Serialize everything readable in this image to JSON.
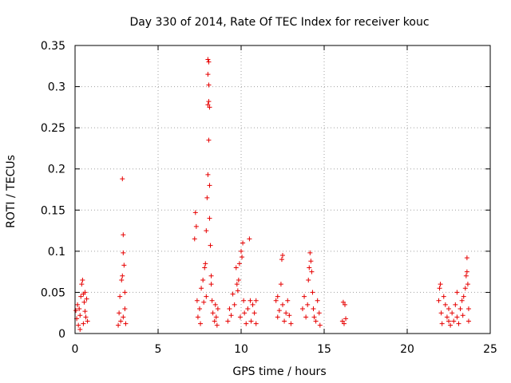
{
  "chart_data": {
    "type": "scatter",
    "title": "Day 330 of 2014, Rate Of TEC Index for receiver kouc",
    "xlabel": "GPS time / hours",
    "ylabel": "ROTI / TECUs",
    "xlim": [
      0,
      25
    ],
    "ylim": [
      0,
      0.35
    ],
    "xticks": [
      "0",
      "5",
      "10",
      "15",
      "20",
      "25"
    ],
    "yticks": [
      "0",
      "0.05",
      "0.1",
      "0.15",
      "0.2",
      "0.25",
      "0.3",
      "0.35"
    ],
    "grid": true,
    "marker": "+",
    "color": "#e60000",
    "series": [
      {
        "name": "ROTI",
        "points": [
          [
            0.05,
            0.028
          ],
          [
            0.1,
            0.018
          ],
          [
            0.15,
            0.035
          ],
          [
            0.2,
            0.01
          ],
          [
            0.25,
            0.03
          ],
          [
            0.3,
            0.022
          ],
          [
            0.35,
            0.045
          ],
          [
            0.4,
            0.06
          ],
          [
            0.45,
            0.065
          ],
          [
            0.5,
            0.012
          ],
          [
            0.55,
            0.038
          ],
          [
            0.6,
            0.05
          ],
          [
            0.65,
            0.02
          ],
          [
            0.7,
            0.042
          ],
          [
            0.75,
            0.015
          ],
          [
            0.3,
            0.005
          ],
          [
            0.5,
            0.048
          ],
          [
            0.6,
            0.027
          ],
          [
            2.6,
            0.01
          ],
          [
            2.65,
            0.025
          ],
          [
            2.7,
            0.045
          ],
          [
            2.75,
            0.015
          ],
          [
            2.8,
            0.065
          ],
          [
            2.85,
            0.07
          ],
          [
            2.85,
            0.188
          ],
          [
            2.9,
            0.12
          ],
          [
            2.9,
            0.098
          ],
          [
            2.95,
            0.083
          ],
          [
            3.0,
            0.05
          ],
          [
            3.0,
            0.03
          ],
          [
            3.05,
            0.012
          ],
          [
            2.9,
            0.02
          ],
          [
            7.2,
            0.115
          ],
          [
            7.25,
            0.147
          ],
          [
            7.3,
            0.13
          ],
          [
            7.35,
            0.04
          ],
          [
            7.4,
            0.02
          ],
          [
            7.5,
            0.03
          ],
          [
            7.55,
            0.012
          ],
          [
            7.6,
            0.055
          ],
          [
            7.7,
            0.065
          ],
          [
            7.75,
            0.038
          ],
          [
            7.8,
            0.08
          ],
          [
            7.85,
            0.085
          ],
          [
            7.9,
            0.125
          ],
          [
            7.95,
            0.165
          ],
          [
            8.0,
            0.333
          ],
          [
            8.0,
            0.315
          ],
          [
            8.0,
            0.278
          ],
          [
            8.0,
            0.193
          ],
          [
            8.05,
            0.33
          ],
          [
            8.05,
            0.302
          ],
          [
            8.05,
            0.282
          ],
          [
            8.05,
            0.235
          ],
          [
            8.1,
            0.275
          ],
          [
            8.1,
            0.18
          ],
          [
            8.1,
            0.14
          ],
          [
            8.15,
            0.107
          ],
          [
            8.2,
            0.07
          ],
          [
            8.25,
            0.04
          ],
          [
            8.3,
            0.025
          ],
          [
            8.4,
            0.015
          ],
          [
            8.45,
            0.035
          ],
          [
            8.5,
            0.02
          ],
          [
            8.55,
            0.01
          ],
          [
            8.6,
            0.03
          ],
          [
            8.2,
            0.06
          ],
          [
            7.9,
            0.045
          ],
          [
            9.2,
            0.015
          ],
          [
            9.3,
            0.03
          ],
          [
            9.4,
            0.022
          ],
          [
            9.5,
            0.048
          ],
          [
            9.6,
            0.035
          ],
          [
            9.7,
            0.08
          ],
          [
            9.75,
            0.06
          ],
          [
            9.8,
            0.052
          ],
          [
            9.85,
            0.065
          ],
          [
            9.9,
            0.085
          ],
          [
            9.95,
            0.02
          ],
          [
            10.0,
            0.1
          ],
          [
            10.05,
            0.093
          ],
          [
            10.1,
            0.11
          ],
          [
            10.15,
            0.04
          ],
          [
            10.2,
            0.025
          ],
          [
            10.3,
            0.012
          ],
          [
            10.4,
            0.03
          ],
          [
            10.5,
            0.115
          ],
          [
            10.55,
            0.04
          ],
          [
            10.6,
            0.015
          ],
          [
            10.7,
            0.035
          ],
          [
            10.8,
            0.025
          ],
          [
            10.9,
            0.04
          ],
          [
            10.9,
            0.012
          ],
          [
            12.1,
            0.04
          ],
          [
            12.2,
            0.02
          ],
          [
            12.3,
            0.028
          ],
          [
            12.4,
            0.06
          ],
          [
            12.45,
            0.09
          ],
          [
            12.5,
            0.095
          ],
          [
            12.5,
            0.035
          ],
          [
            12.6,
            0.015
          ],
          [
            12.7,
            0.025
          ],
          [
            12.8,
            0.04
          ],
          [
            12.9,
            0.022
          ],
          [
            13.0,
            0.012
          ],
          [
            12.2,
            0.045
          ],
          [
            13.7,
            0.03
          ],
          [
            13.8,
            0.045
          ],
          [
            13.9,
            0.02
          ],
          [
            14.0,
            0.035
          ],
          [
            14.05,
            0.065
          ],
          [
            14.1,
            0.08
          ],
          [
            14.15,
            0.098
          ],
          [
            14.2,
            0.088
          ],
          [
            14.25,
            0.075
          ],
          [
            14.3,
            0.05
          ],
          [
            14.35,
            0.03
          ],
          [
            14.4,
            0.02
          ],
          [
            14.5,
            0.015
          ],
          [
            14.6,
            0.04
          ],
          [
            14.7,
            0.025
          ],
          [
            14.75,
            0.01
          ],
          [
            16.1,
            0.015
          ],
          [
            16.15,
            0.038
          ],
          [
            16.2,
            0.012
          ],
          [
            16.25,
            0.035
          ],
          [
            16.3,
            0.018
          ],
          [
            21.9,
            0.04
          ],
          [
            21.95,
            0.055
          ],
          [
            22.0,
            0.06
          ],
          [
            22.05,
            0.025
          ],
          [
            22.1,
            0.012
          ],
          [
            22.2,
            0.045
          ],
          [
            22.3,
            0.035
          ],
          [
            22.4,
            0.02
          ],
          [
            22.5,
            0.03
          ],
          [
            22.6,
            0.01
          ],
          [
            22.7,
            0.025
          ],
          [
            22.8,
            0.015
          ],
          [
            22.9,
            0.035
          ],
          [
            23.0,
            0.02
          ],
          [
            23.1,
            0.012
          ],
          [
            23.2,
            0.03
          ],
          [
            23.3,
            0.04
          ],
          [
            23.35,
            0.022
          ],
          [
            23.4,
            0.045
          ],
          [
            23.5,
            0.055
          ],
          [
            23.55,
            0.07
          ],
          [
            23.6,
            0.075
          ],
          [
            23.6,
            0.092
          ],
          [
            23.65,
            0.06
          ],
          [
            23.7,
            0.03
          ],
          [
            23.7,
            0.015
          ],
          [
            23.0,
            0.05
          ],
          [
            22.5,
            0.015
          ]
        ]
      }
    ]
  }
}
